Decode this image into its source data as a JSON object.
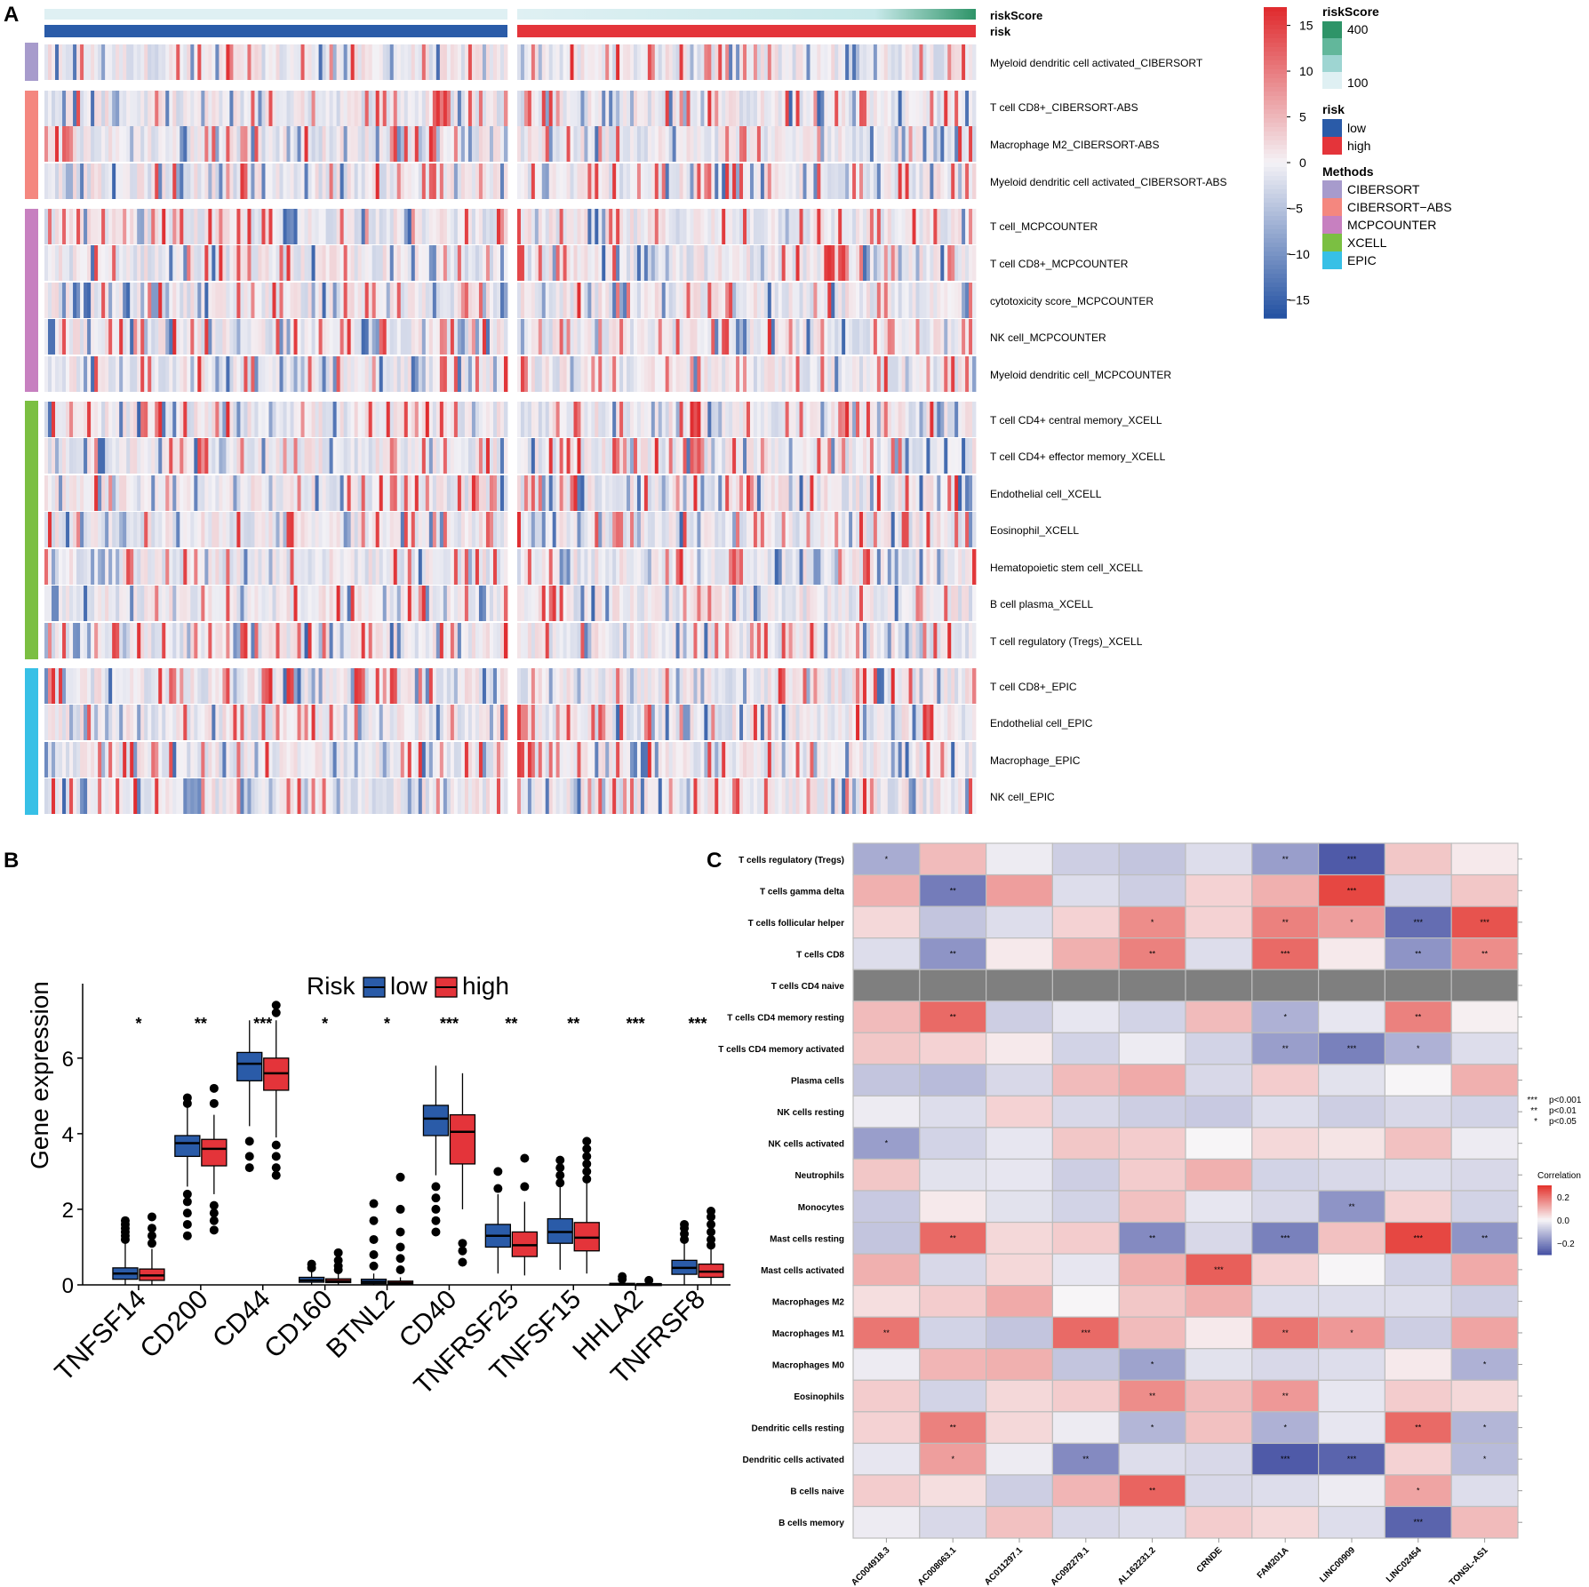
{
  "panel_labels": {
    "a": "A",
    "b": "B",
    "c": "C"
  },
  "colors": {
    "low": "#2a5ba8",
    "high": "#e4343a",
    "heat_low": "#2553a3",
    "heat_mid": "#f4f2f6",
    "heat_high": "#e02c2f",
    "corr_low": "#4a55a6",
    "corr_high": "#e43630",
    "na_gray": "#7f7f7f",
    "score_low": "#dff0f3",
    "score_high": "#2e9468",
    "method_colors": [
      "#a79bcc",
      "#f4877f",
      "#c780c0",
      "#7bbf42",
      "#37c0e6"
    ]
  },
  "chart_data": [
    {
      "type": "heatmap",
      "panel": "A",
      "annotation_rows": [
        "riskScore",
        "risk"
      ],
      "row_labels": [
        "Myeloid dendritic cell activated_CIBERSORT",
        "T cell CD8+_CIBERSORT-ABS",
        "Macrophage M2_CIBERSORT-ABS",
        "Myeloid dendritic cell activated_CIBERSORT-ABS",
        "T cell_MCPCOUNTER",
        "T cell CD8+_MCPCOUNTER",
        "cytotoxicity score_MCPCOUNTER",
        "NK cell_MCPCOUNTER",
        "Myeloid dendritic cell_MCPCOUNTER",
        "T cell CD4+ central memory_XCELL",
        "T cell CD4+ effector memory_XCELL",
        "Endothelial cell_XCELL",
        "Eosinophil_XCELL",
        "Hematopoietic stem cell_XCELL",
        "B cell plasma_XCELL",
        "T cell regulatory (Tregs)_XCELL",
        "T cell CD8+_EPIC",
        "Endothelial cell_EPIC",
        "Macrophage_EPIC",
        "NK cell_EPIC"
      ],
      "row_groups": [
        0,
        1,
        1,
        1,
        2,
        2,
        2,
        2,
        2,
        3,
        3,
        3,
        3,
        3,
        3,
        3,
        4,
        4,
        4,
        4
      ],
      "groups_columns": [
        "low",
        "high"
      ],
      "colorbar": {
        "ticks": [
          "15",
          "10",
          "5",
          "0",
          "−5",
          "−10",
          "−15"
        ],
        "range": [
          -17,
          17
        ]
      },
      "legend": {
        "riskScore_title": "riskScore",
        "riskScore_ticks": [
          "400",
          "100"
        ],
        "risk_title": "risk",
        "risk_items": [
          "low",
          "high"
        ],
        "methods_title": "Methods",
        "methods_items": [
          "CIBERSORT",
          "CIBERSORT−ABS",
          "MCPCOUNTER",
          "XCELL",
          "EPIC"
        ]
      }
    },
    {
      "type": "box",
      "panel": "B",
      "legend_title": "Risk",
      "series": [
        {
          "name": "low"
        },
        {
          "name": "high"
        }
      ],
      "ylabel": "Gene expression",
      "ylim": [
        0,
        7.5
      ],
      "yticks": [
        "0",
        "2",
        "4",
        "6"
      ],
      "categories": [
        "TNFSF14",
        "CD200",
        "CD44",
        "CD160",
        "BTNL2",
        "CD40",
        "TNFRSF25",
        "TNFSF15",
        "HHLA2",
        "TNFRSF8"
      ],
      "significance": [
        "*",
        "**",
        "***",
        "*",
        "*",
        "***",
        "**",
        "**",
        "***",
        "***"
      ],
      "low": [
        {
          "q1": 0.15,
          "med": 0.3,
          "q3": 0.45,
          "wlo": 0.0,
          "whi": 1.1,
          "out": [
            1.2,
            1.3,
            1.4,
            1.5,
            1.6,
            1.7
          ]
        },
        {
          "q1": 3.4,
          "med": 3.75,
          "q3": 3.95,
          "wlo": 2.6,
          "whi": 4.7,
          "out": [
            1.3,
            1.6,
            1.9,
            2.2,
            2.4,
            4.8,
            4.95
          ]
        },
        {
          "q1": 5.4,
          "med": 5.85,
          "q3": 6.15,
          "wlo": 4.2,
          "whi": 7.0,
          "out": [
            3.1,
            3.4,
            3.8
          ]
        },
        {
          "q1": 0.07,
          "med": 0.12,
          "q3": 0.2,
          "wlo": 0.0,
          "whi": 0.35,
          "out": [
            0.45,
            0.55
          ]
        },
        {
          "q1": 0.03,
          "med": 0.08,
          "q3": 0.15,
          "wlo": 0.0,
          "whi": 0.3,
          "out": [
            0.5,
            0.8,
            1.2,
            1.7,
            2.15
          ]
        },
        {
          "q1": 3.95,
          "med": 4.4,
          "q3": 4.75,
          "wlo": 2.9,
          "whi": 5.8,
          "out": [
            1.4,
            1.7,
            2.0,
            2.3,
            2.6
          ]
        },
        {
          "q1": 1.0,
          "med": 1.3,
          "q3": 1.6,
          "wlo": 0.3,
          "whi": 2.4,
          "out": [
            2.55,
            3.0
          ]
        },
        {
          "q1": 1.1,
          "med": 1.4,
          "q3": 1.75,
          "wlo": 0.4,
          "whi": 2.6,
          "out": [
            2.7,
            2.9,
            3.1,
            3.3
          ]
        },
        {
          "q1": 0.01,
          "med": 0.02,
          "q3": 0.04,
          "wlo": 0.0,
          "whi": 0.08,
          "out": [
            0.15,
            0.22
          ]
        },
        {
          "q1": 0.28,
          "med": 0.45,
          "q3": 0.65,
          "wlo": 0.0,
          "whi": 1.1,
          "out": [
            1.2,
            1.35,
            1.5,
            1.6
          ]
        }
      ],
      "high": [
        {
          "q1": 0.12,
          "med": 0.25,
          "q3": 0.42,
          "wlo": 0.0,
          "whi": 0.95,
          "out": [
            1.1,
            1.3,
            1.5,
            1.8
          ]
        },
        {
          "q1": 3.15,
          "med": 3.6,
          "q3": 3.85,
          "wlo": 2.4,
          "whi": 4.5,
          "out": [
            1.45,
            1.7,
            1.9,
            2.1,
            4.8,
            5.2
          ]
        },
        {
          "q1": 5.15,
          "med": 5.6,
          "q3": 6.0,
          "wlo": 3.9,
          "whi": 7.0,
          "out": [
            2.9,
            3.1,
            3.4,
            3.7,
            7.2,
            7.4
          ]
        },
        {
          "q1": 0.06,
          "med": 0.1,
          "q3": 0.16,
          "wlo": 0.0,
          "whi": 0.3,
          "out": [
            0.4,
            0.5,
            0.65,
            0.85
          ]
        },
        {
          "q1": 0.02,
          "med": 0.05,
          "q3": 0.1,
          "wlo": 0.0,
          "whi": 0.2,
          "out": [
            0.4,
            0.7,
            1.0,
            1.4,
            2.0,
            2.85
          ]
        },
        {
          "q1": 3.2,
          "med": 4.05,
          "q3": 4.5,
          "wlo": 2.0,
          "whi": 5.6,
          "out": [
            0.6,
            0.9,
            1.1
          ]
        },
        {
          "q1": 0.75,
          "med": 1.05,
          "q3": 1.4,
          "wlo": 0.25,
          "whi": 2.2,
          "out": [
            2.6,
            3.35
          ]
        },
        {
          "q1": 0.9,
          "med": 1.25,
          "q3": 1.65,
          "wlo": 0.3,
          "whi": 2.7,
          "out": [
            2.8,
            3.0,
            3.2,
            3.4,
            3.6,
            3.8
          ]
        },
        {
          "q1": 0.01,
          "med": 0.02,
          "q3": 0.03,
          "wlo": 0.0,
          "whi": 0.07,
          "out": [
            0.12
          ]
        },
        {
          "q1": 0.2,
          "med": 0.35,
          "q3": 0.55,
          "wlo": 0.0,
          "whi": 0.95,
          "out": [
            1.05,
            1.2,
            1.4,
            1.6,
            1.8,
            1.95
          ]
        }
      ]
    },
    {
      "type": "heatmap",
      "panel": "C",
      "rows": [
        "T cells regulatory (Tregs)",
        "T cells gamma delta",
        "T cells follicular helper",
        "T cells CD8",
        "T cells CD4 naive",
        "T cells CD4 memory resting",
        "T cells CD4 memory activated",
        "Plasma cells",
        "NK cells resting",
        "NK cells activated",
        "Neutrophils",
        "Monocytes",
        "Mast cells resting",
        "Mast cells activated",
        "Macrophages M2",
        "Macrophages M1",
        "Macrophages M0",
        "Eosinophils",
        "Dendritic cells resting",
        "Dendritic cells activated",
        "B cells naive",
        "B cells memory"
      ],
      "columns": [
        "AC004918.3",
        "AC008063.1",
        "AC011297.1",
        "AC092279.1",
        "AL162231.2",
        "CRNDE",
        "FAM201A",
        "LINC00909",
        "LINC02454",
        "TONSL-AS1"
      ],
      "values": [
        [
          -0.15,
          0.1,
          -0.02,
          -0.08,
          -0.1,
          -0.05,
          -0.18,
          -0.32,
          0.08,
          0.02
        ],
        [
          0.12,
          -0.25,
          0.15,
          -0.05,
          -0.08,
          0.06,
          0.12,
          0.3,
          -0.06,
          0.08
        ],
        [
          0.05,
          -0.1,
          -0.05,
          0.06,
          0.18,
          0.06,
          0.2,
          0.15,
          -0.28,
          0.28
        ],
        [
          -0.05,
          -0.2,
          0.02,
          0.12,
          0.2,
          -0.05,
          0.24,
          0.02,
          -0.2,
          0.18
        ],
        [
          null,
          null,
          null,
          null,
          null,
          null,
          null,
          null,
          null,
          null
        ],
        [
          0.1,
          0.24,
          -0.08,
          -0.03,
          -0.07,
          0.1,
          -0.14,
          -0.03,
          0.2,
          0.01
        ],
        [
          0.08,
          0.06,
          0.02,
          -0.07,
          -0.02,
          -0.07,
          -0.18,
          -0.24,
          -0.14,
          -0.05
        ],
        [
          -0.1,
          -0.12,
          -0.06,
          0.1,
          0.13,
          -0.06,
          0.07,
          -0.04,
          0.0,
          0.12
        ],
        [
          -0.02,
          -0.05,
          0.06,
          -0.06,
          -0.08,
          -0.09,
          -0.05,
          -0.08,
          -0.06,
          -0.07
        ],
        [
          -0.18,
          -0.07,
          -0.03,
          0.08,
          0.07,
          0.0,
          0.05,
          0.03,
          0.09,
          -0.02
        ],
        [
          0.08,
          -0.04,
          -0.03,
          -0.08,
          0.07,
          0.12,
          -0.07,
          -0.06,
          -0.05,
          -0.06
        ],
        [
          -0.09,
          0.02,
          -0.04,
          -0.07,
          0.09,
          -0.03,
          -0.06,
          -0.2,
          0.06,
          -0.07
        ],
        [
          -0.1,
          0.24,
          0.05,
          0.07,
          -0.22,
          -0.06,
          -0.24,
          0.09,
          0.3,
          -0.2
        ],
        [
          0.12,
          -0.06,
          0.05,
          -0.03,
          0.12,
          0.26,
          0.06,
          0.0,
          -0.07,
          0.13
        ],
        [
          0.04,
          0.07,
          0.13,
          0.0,
          0.08,
          0.12,
          -0.05,
          -0.05,
          -0.05,
          -0.08
        ],
        [
          0.22,
          -0.07,
          -0.1,
          0.24,
          0.1,
          0.02,
          0.22,
          0.16,
          -0.08,
          0.14
        ],
        [
          -0.02,
          0.11,
          0.12,
          -0.1,
          -0.17,
          -0.04,
          -0.06,
          -0.05,
          0.02,
          -0.14
        ],
        [
          0.07,
          -0.07,
          0.05,
          0.07,
          0.18,
          0.1,
          0.16,
          -0.03,
          0.07,
          0.05
        ],
        [
          0.06,
          0.2,
          0.05,
          -0.02,
          -0.13,
          0.09,
          -0.14,
          -0.03,
          0.24,
          -0.13
        ],
        [
          -0.03,
          0.15,
          -0.02,
          -0.22,
          -0.05,
          -0.06,
          -0.32,
          -0.3,
          0.06,
          -0.12
        ],
        [
          0.07,
          0.04,
          -0.08,
          0.11,
          0.25,
          -0.06,
          -0.05,
          -0.02,
          0.14,
          -0.05
        ],
        [
          -0.02,
          -0.06,
          0.09,
          -0.06,
          -0.05,
          0.07,
          0.05,
          -0.05,
          -0.3,
          0.1
        ]
      ],
      "stars": [
        [
          "*",
          "",
          "",
          "",
          "",
          "",
          "**",
          "***",
          "",
          ""
        ],
        [
          "",
          "**",
          "",
          "",
          "",
          "",
          "",
          "***",
          "",
          ""
        ],
        [
          "",
          "",
          "",
          "",
          "*",
          "",
          "**",
          "*",
          "***",
          "***"
        ],
        [
          "",
          "**",
          "",
          "",
          "**",
          "",
          "***",
          "",
          "**",
          "**"
        ],
        [
          "",
          "",
          "",
          "",
          "",
          "",
          "",
          "",
          "",
          ""
        ],
        [
          "",
          "**",
          "",
          "",
          "",
          "",
          "*",
          "",
          "**",
          ""
        ],
        [
          "",
          "",
          "",
          "",
          "",
          "",
          "**",
          "***",
          "*",
          ""
        ],
        [
          "",
          "",
          "",
          "",
          "",
          "",
          "",
          "",
          "",
          ""
        ],
        [
          "",
          "",
          "",
          "",
          "",
          "",
          "",
          "",
          "",
          ""
        ],
        [
          "*",
          "",
          "",
          "",
          "",
          "",
          "",
          "",
          "",
          ""
        ],
        [
          "",
          "",
          "",
          "",
          "",
          "",
          "",
          "",
          "",
          ""
        ],
        [
          "",
          "",
          "",
          "",
          "",
          "",
          "",
          "**",
          "",
          ""
        ],
        [
          "",
          "**",
          "",
          "",
          "**",
          "",
          "***",
          "",
          "***",
          "**"
        ],
        [
          "",
          "",
          "",
          "",
          "",
          "***",
          "",
          "",
          "",
          ""
        ],
        [
          "",
          "",
          "",
          "",
          "",
          "",
          "",
          "",
          "",
          ""
        ],
        [
          "**",
          "",
          "",
          "***",
          "",
          "",
          "**",
          "*",
          "",
          ""
        ],
        [
          "",
          "",
          "",
          "",
          "*",
          "",
          "",
          "",
          "",
          "*"
        ],
        [
          "",
          "",
          "",
          "",
          "**",
          "",
          "**",
          "",
          "",
          ""
        ],
        [
          "",
          "**",
          "",
          "",
          "*",
          "",
          "*",
          "",
          "**",
          "*"
        ],
        [
          "",
          "*",
          "",
          "**",
          "",
          "",
          "***",
          "***",
          "",
          "*"
        ],
        [
          "",
          "",
          "",
          "",
          "**",
          "",
          "",
          "",
          "*",
          ""
        ],
        [
          "",
          "",
          "",
          "",
          "",
          "",
          "",
          "",
          "***",
          ""
        ]
      ],
      "sig_legend": [
        {
          "stars": "***",
          "label": "p<0.001"
        },
        {
          "stars": "**",
          "label": "p<0.01"
        },
        {
          "stars": "*",
          "label": "p<0.05"
        }
      ],
      "colorbar": {
        "title": "Correlation",
        "ticks": [
          "0.2",
          "0.0",
          "−0.2"
        ],
        "range": [
          -0.3,
          0.3
        ]
      }
    }
  ]
}
